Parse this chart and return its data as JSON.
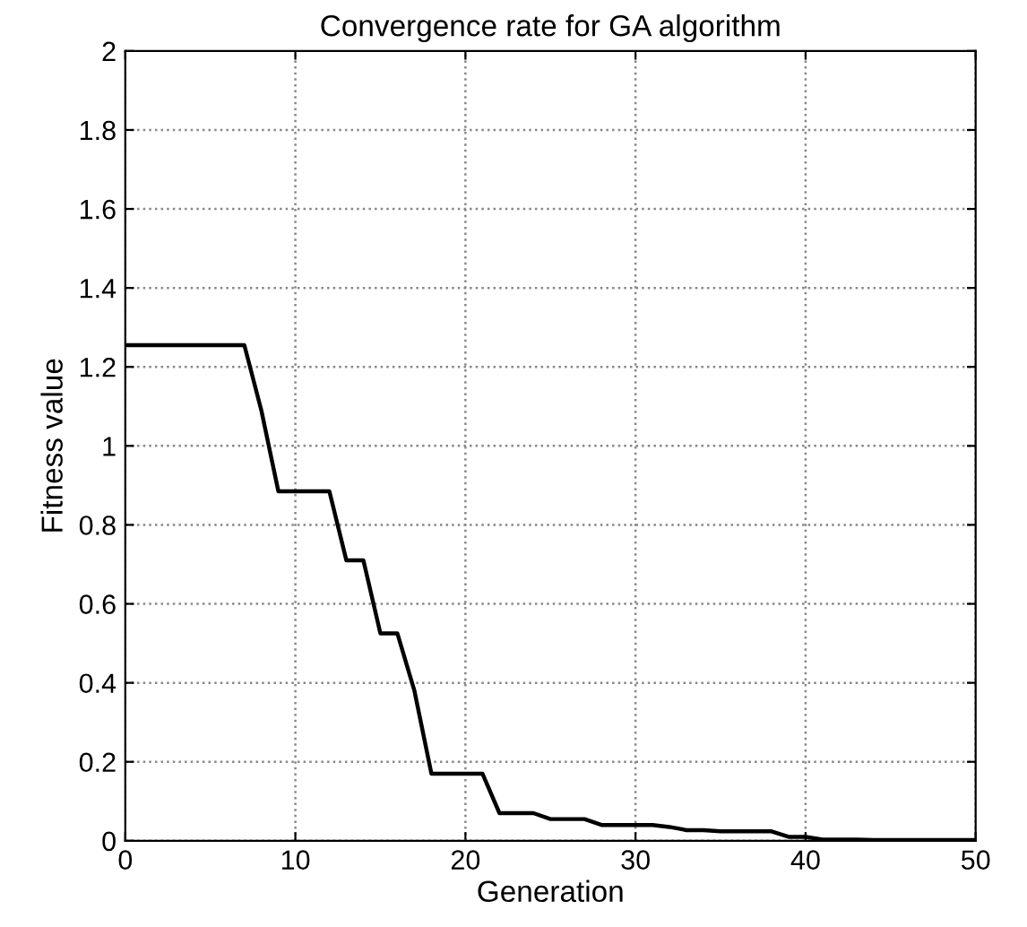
{
  "chart_data": {
    "type": "line",
    "title": "Convergence rate for GA algorithm",
    "xlabel": "Generation",
    "ylabel": "Fitness value",
    "x": [
      0,
      1,
      2,
      3,
      4,
      5,
      6,
      7,
      8,
      9,
      10,
      11,
      12,
      13,
      14,
      15,
      16,
      17,
      18,
      19,
      20,
      21,
      22,
      23,
      24,
      25,
      26,
      27,
      28,
      29,
      30,
      31,
      32,
      33,
      34,
      35,
      36,
      37,
      38,
      39,
      40,
      41,
      42,
      43,
      44,
      45,
      46,
      47,
      48,
      49,
      50
    ],
    "series": [
      {
        "color": "#000000",
        "values": [
          1.255,
          1.255,
          1.255,
          1.255,
          1.255,
          1.255,
          1.255,
          1.255,
          1.09,
          0.885,
          0.885,
          0.885,
          0.885,
          0.71,
          0.71,
          0.525,
          0.525,
          0.38,
          0.17,
          0.17,
          0.17,
          0.17,
          0.07,
          0.07,
          0.07,
          0.055,
          0.055,
          0.055,
          0.04,
          0.04,
          0.04,
          0.04,
          0.035,
          0.027,
          0.027,
          0.024,
          0.024,
          0.024,
          0.024,
          0.01,
          0.01,
          0.003,
          0.003,
          0.003,
          0.002,
          0.002,
          0.002,
          0.002,
          0.002,
          0.002,
          0.002
        ]
      }
    ],
    "xlim": [
      0,
      50
    ],
    "ylim": [
      0,
      2
    ],
    "xticks": [
      0,
      10,
      20,
      30,
      40,
      50
    ],
    "yticks": [
      0,
      0.2,
      0.4,
      0.6,
      0.8,
      1,
      1.2,
      1.4,
      1.6,
      1.8,
      2
    ],
    "grid": true,
    "marker": "none",
    "line_style": "solid",
    "legend": false
  }
}
